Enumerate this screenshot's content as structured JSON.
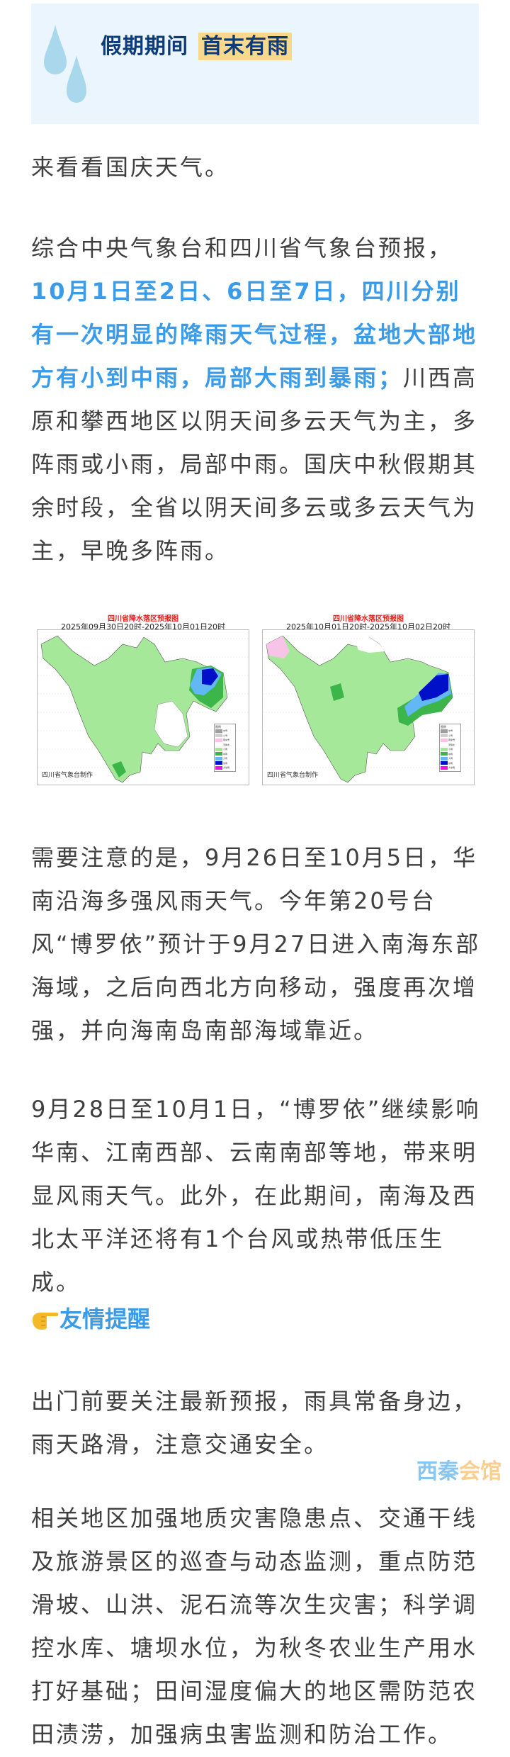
{
  "header": {
    "title_part1": "假期期间",
    "title_part2": "首末有雨",
    "icon": "raindrops-icon",
    "colors": {
      "background": "#eaf5fd",
      "title": "#0d3b7a",
      "highlight": "#f6d98c"
    }
  },
  "paragraphs": {
    "intro": "来看看国庆天气。",
    "forecast": {
      "lead": "综合中央气象台和四川省气象台预报，",
      "highlight": "10月1日至2日、6日至7日，四川分别有一次明显的降雨天气过程，盆地大部地方有小到中雨，局部大雨到暴雨；",
      "tail": "川西高原和攀西地区以阴天间多云天气为主，多阵雨或小雨，局部中雨。国庆中秋假期其余时段，全省以阴天间多云或多云天气为主，早晚多阵雨。"
    },
    "typhoon": "需要注意的是，9月26日至10月5日，华南沿海多强风雨天气。今年第20号台风“博罗依”预计于9月27日进入南海东部海域，之后向西北方向移动，强度再次增强，并向海南岛南部海域靠近。",
    "typhoon_impact": "9月28日至10月1日，“博罗依”继续影响华南、江南西部、云南南部等地，带来明显风雨天气。此外，在此期间，南海及西北太平洋还将有1个台风或热带低压生成。",
    "reminder_heading": "友情提醒",
    "reminder_icon": "pointing-hand-icon",
    "reminder_1": "出门前要关注最新预报，雨具常备身边，雨天路滑，注意交通安全。",
    "reminder_2": "相关地区加强地质灾害隐患点、交通干线及旅游景区的巡查与动态监测，重点防范滑坡、山洪、泥石流等次生灾害；科学调控水库、塘坝水位，为秋冬农业生产用水打好基础；田间湿度偏大的地区需防范农田渍涝，加强病虫害监测和防治工作。"
  },
  "maps": [
    {
      "title": "四川省降水落区预报图",
      "period": "2025年09月30日20时-2025年10月01日20时",
      "maker": "四川省气象台制作"
    },
    {
      "title": "四川省降水落区预报图",
      "period": "2025年10月01日20时-2025年10月02日20时",
      "maker": "四川省气象台制作"
    }
  ],
  "legend": {
    "title": "图例",
    "items": [
      {
        "label": "中雪",
        "color": "#9e9e9e"
      },
      {
        "label": "小雪",
        "color": "#cfcfcf"
      },
      {
        "label": "雨夹雪",
        "color": "#f7c3e6"
      },
      {
        "label": "无降水",
        "color": "#ffffff"
      },
      {
        "label": "小雨",
        "color": "#a6e89a"
      },
      {
        "label": "中雨",
        "color": "#3cb54a"
      },
      {
        "label": "大雨",
        "color": "#62b8f5"
      },
      {
        "label": "暴雨",
        "color": "#0010c8"
      },
      {
        "label": "大暴雨",
        "color": "#f012e6"
      }
    ]
  },
  "watermark": {
    "part1": "西秦",
    "part2": "会馆"
  },
  "colors": {
    "body_text": "#3f3f3f",
    "accent_blue": "#3a9be8"
  }
}
